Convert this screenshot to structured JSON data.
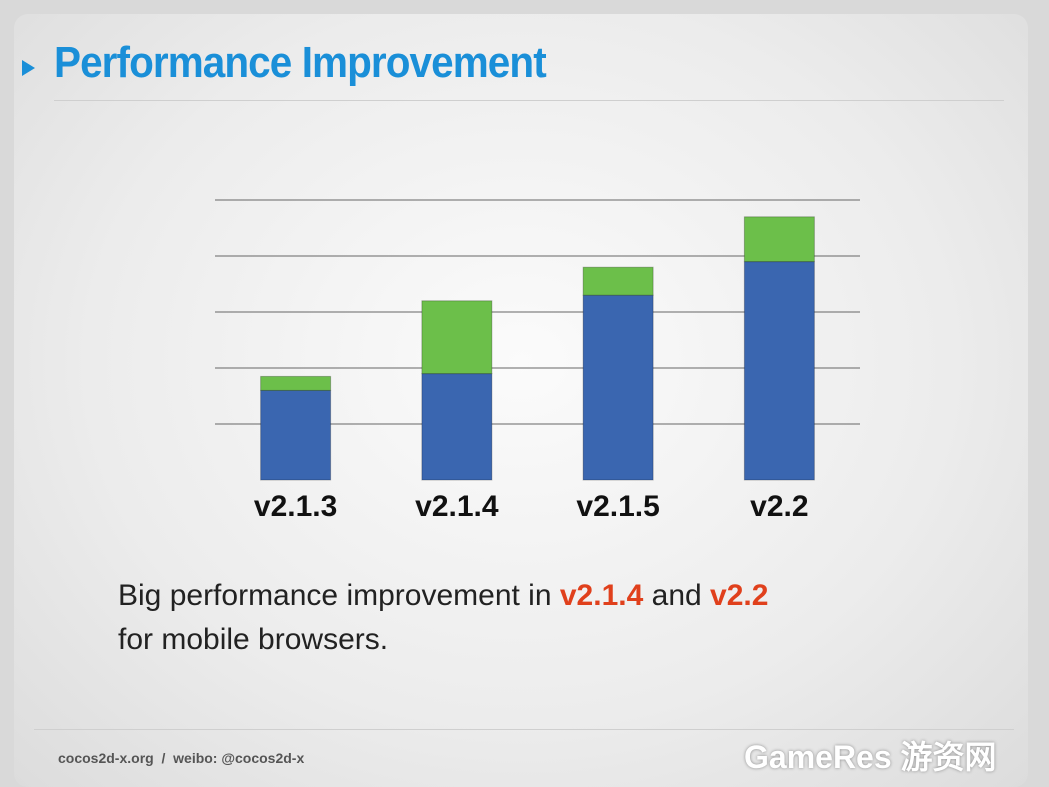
{
  "chart_data": {
    "type": "bar",
    "stacked": true,
    "categories": [
      "v2.1.3",
      "v2.1.4",
      "v2.1.5",
      "v2.2"
    ],
    "series": [
      {
        "color": "#3a66b0",
        "values": [
          1.6,
          1.9,
          3.3,
          3.9
        ]
      },
      {
        "color": "#6cbf4a",
        "values": [
          0.25,
          1.3,
          0.5,
          0.8
        ]
      }
    ],
    "ylim": [
      0,
      5
    ],
    "yticks": [
      1,
      2,
      3,
      4,
      5
    ],
    "grid": true
  },
  "slide": {
    "title": "Performance Improvement",
    "text": {
      "before": "Big performance improvement in",
      "highlight1": "v2.1.4",
      "middle": "and",
      "highlight2": "v2.2",
      "after": "for mobile browsers."
    },
    "footer": "cocos2d-x.org  /  weibo: @cocos2d-x",
    "watermark": {
      "latin": "GameRes",
      "chinese": "游资网"
    }
  }
}
